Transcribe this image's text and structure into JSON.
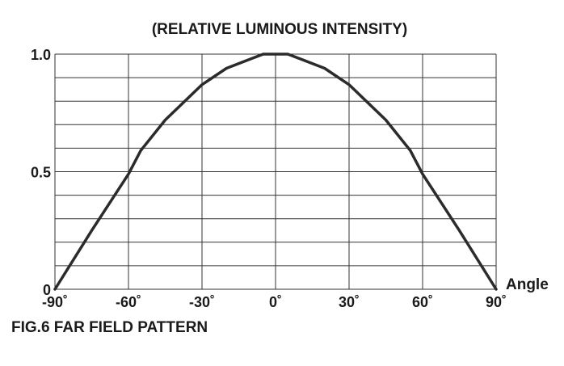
{
  "chart_data": {
    "type": "line",
    "title": "(RELATIVE LUMINOUS INTENSITY)",
    "xlabel": "Angle",
    "ylabel": "",
    "xlim": [
      -90,
      90
    ],
    "ylim": [
      0,
      1
    ],
    "grid": true,
    "x_ticks": [
      {
        "value": -90,
        "label": "-90˚"
      },
      {
        "value": -60,
        "label": "-60˚"
      },
      {
        "value": -30,
        "label": "-30˚"
      },
      {
        "value": 0,
        "label": "0˚"
      },
      {
        "value": 30,
        "label": "30˚"
      },
      {
        "value": 60,
        "label": "60˚"
      },
      {
        "value": 90,
        "label": "90˚"
      }
    ],
    "y_ticks": [
      {
        "value": 0,
        "label": "0"
      },
      {
        "value": 0.5,
        "label": "0.5"
      },
      {
        "value": 1.0,
        "label": "1.0"
      }
    ],
    "series": [
      {
        "x": [
          -90,
          -75,
          -60,
          -55,
          -45,
          -30,
          -20,
          -10,
          -5,
          0,
          5,
          10,
          20,
          30,
          45,
          55,
          60,
          75,
          90
        ],
        "y": [
          0.0,
          0.25,
          0.49,
          0.59,
          0.72,
          0.87,
          0.94,
          0.98,
          1.0,
          1.0,
          1.0,
          0.98,
          0.94,
          0.87,
          0.72,
          0.59,
          0.49,
          0.25,
          0.0
        ]
      }
    ],
    "caption": "FIG.6 FAR FIELD PATTERN"
  }
}
